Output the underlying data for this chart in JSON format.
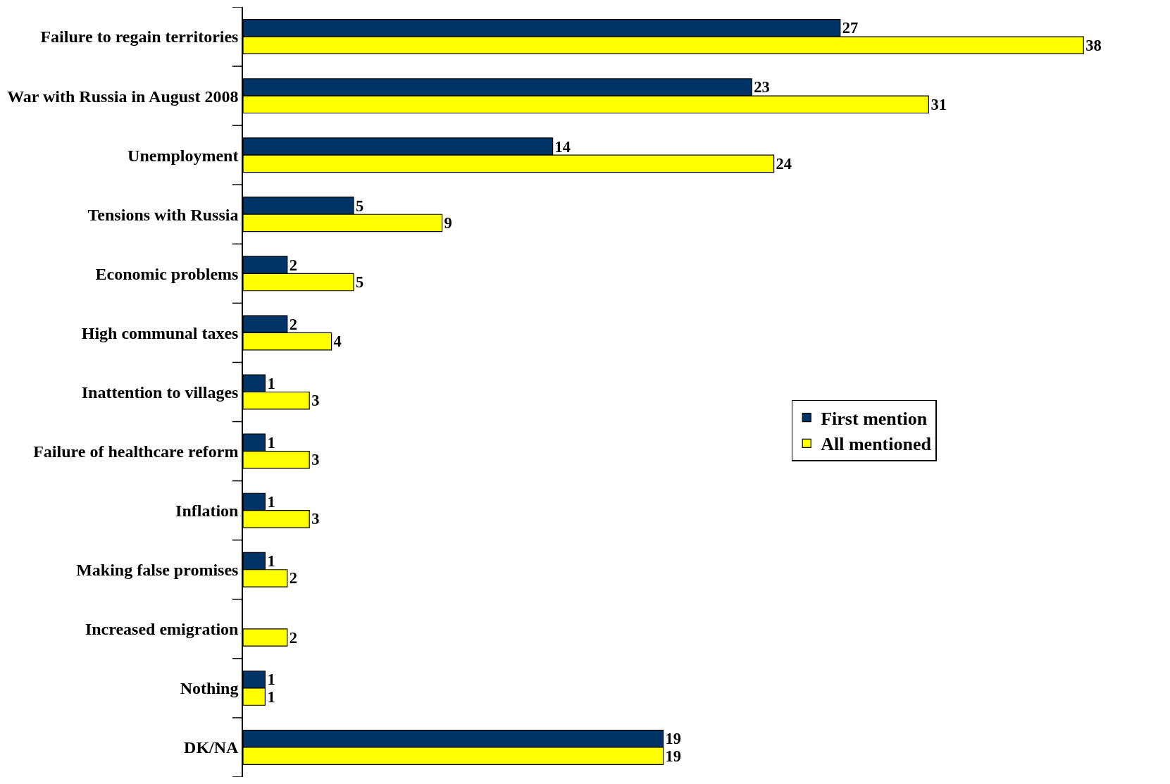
{
  "chart_data": {
    "type": "bar",
    "orientation": "horizontal",
    "categories": [
      "Failure to regain territories",
      "War with Russia in August 2008",
      "Unemployment",
      "Tensions with Russia",
      "Economic problems",
      "High communal taxes",
      "Inattention to villages",
      "Failure of healthcare reform",
      "Inflation",
      "Making false promises",
      "Increased emigration",
      "Nothing",
      "DK/NA"
    ],
    "series": [
      {
        "name": "First mention",
        "color": "#003366",
        "values": [
          27,
          23,
          14,
          5,
          2,
          2,
          1,
          1,
          1,
          1,
          null,
          1,
          19
        ]
      },
      {
        "name": "All mentioned",
        "color": "#ffff00",
        "values": [
          38,
          31,
          24,
          9,
          5,
          4,
          3,
          3,
          3,
          2,
          2,
          1,
          19
        ]
      }
    ],
    "data_labels": true,
    "legend": "right"
  }
}
